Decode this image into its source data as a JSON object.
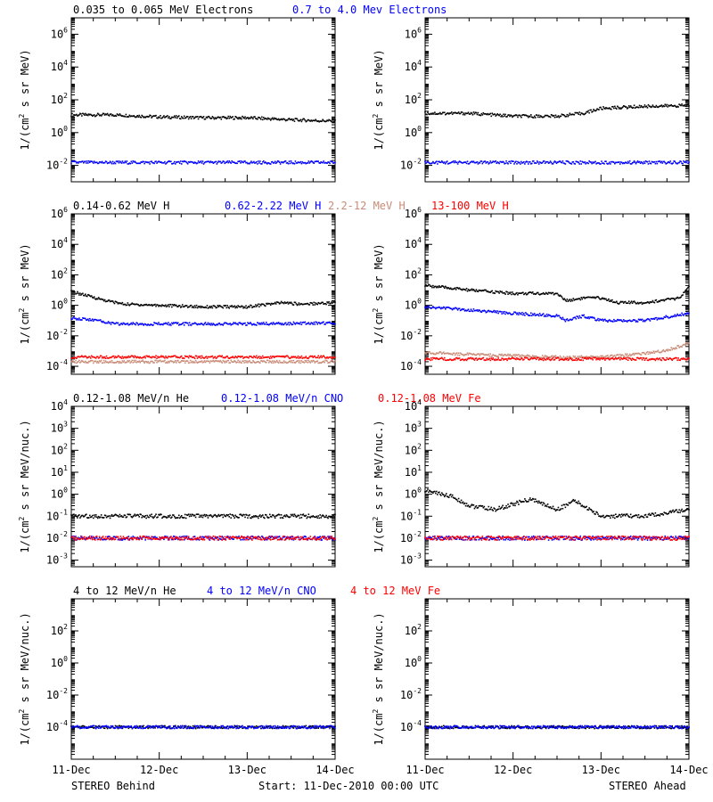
{
  "footer": {
    "left": "STEREO Behind",
    "center": "Start: 11-Dec-2010 00:00 UTC",
    "right": "STEREO Ahead"
  },
  "colors": {
    "black": "#000000",
    "blue": "#0000ff",
    "tan": "#c88c78",
    "red": "#ff0000"
  },
  "chart_data": [
    {
      "type": "scatter",
      "row": 0,
      "spacecraft": "STEREO Behind",
      "ylabel": "1/(cm2 s sr MeV)",
      "ylog": true,
      "ylim": [
        0.001,
        10000000
      ],
      "y_ticks": [
        "10^-2",
        "10^0",
        "10^2",
        "10^4",
        "10^6"
      ],
      "x_ticks": [
        "11-Dec",
        "12-Dec",
        "13-Dec",
        "14-Dec"
      ],
      "xlim": [
        0,
        3
      ],
      "series": [
        {
          "name": "0.035 to 0.065 MeV Electrons",
          "color": "#000000",
          "x": [
            0,
            0.5,
            1,
            1.5,
            2,
            2.5,
            3
          ],
          "y": [
            12,
            12,
            9,
            8,
            8,
            6,
            5
          ]
        },
        {
          "name": "0.7 to 4.0 Mev Electrons",
          "color": "#0000ff",
          "x": [
            0,
            0.5,
            1,
            1.5,
            2,
            2.5,
            3
          ],
          "y": [
            0.015,
            0.015,
            0.015,
            0.015,
            0.015,
            0.015,
            0.015
          ]
        }
      ]
    },
    {
      "type": "scatter",
      "row": 0,
      "spacecraft": "STEREO Ahead",
      "ylabel": "1/(cm2 s sr MeV)",
      "ylog": true,
      "ylim": [
        0.001,
        10000000
      ],
      "y_ticks": [
        "10^-2",
        "10^0",
        "10^2",
        "10^4",
        "10^6"
      ],
      "x_ticks": [
        "11-Dec",
        "12-Dec",
        "13-Dec",
        "14-Dec"
      ],
      "xlim": [
        0,
        3
      ],
      "series": [
        {
          "name": "0.035 to 0.065 MeV Electrons",
          "color": "#000000",
          "x": [
            0,
            0.5,
            1,
            1.5,
            1.8,
            2,
            2.5,
            3
          ],
          "y": [
            15,
            15,
            10,
            10,
            15,
            30,
            40,
            45
          ]
        },
        {
          "name": "0.7 to 4.0 Mev Electrons",
          "color": "#0000ff",
          "x": [
            0,
            0.5,
            1,
            1.5,
            2,
            2.5,
            3
          ],
          "y": [
            0.015,
            0.015,
            0.015,
            0.015,
            0.015,
            0.015,
            0.015
          ]
        }
      ]
    },
    {
      "type": "scatter",
      "row": 1,
      "spacecraft": "STEREO Behind",
      "ylabel": "1/(cm2 s sr MeV)",
      "ylog": true,
      "ylim": [
        3e-05,
        1000000
      ],
      "y_ticks": [
        "10^-4",
        "10^-2",
        "10^0",
        "10^2",
        "10^4",
        "10^6"
      ],
      "x_ticks": [
        "11-Dec",
        "12-Dec",
        "13-Dec",
        "14-Dec"
      ],
      "xlim": [
        0,
        3
      ],
      "series": [
        {
          "name": "0.14-0.62 MeV H",
          "color": "#000000",
          "x": [
            0,
            0.2,
            0.4,
            0.6,
            1,
            1.5,
            2,
            2.4,
            2.6,
            3
          ],
          "y": [
            8,
            4,
            2,
            1.2,
            1,
            0.8,
            0.8,
            1.5,
            1.2,
            1.5
          ]
        },
        {
          "name": "0.62-2.22 MeV H",
          "color": "#0000ff",
          "x": [
            0,
            0.3,
            0.5,
            1,
            2,
            3
          ],
          "y": [
            0.15,
            0.1,
            0.06,
            0.06,
            0.06,
            0.07
          ]
        },
        {
          "name": "2.2-12 MeV H",
          "color": "#c88c78",
          "x": [
            0,
            1,
            2,
            3
          ],
          "y": [
            0.0002,
            0.0002,
            0.0002,
            0.0002
          ]
        },
        {
          "name": "13-100 MeV H",
          "color": "#ff0000",
          "x": [
            0,
            1,
            2,
            3
          ],
          "y": [
            0.0004,
            0.0004,
            0.0004,
            0.0004
          ]
        }
      ]
    },
    {
      "type": "scatter",
      "row": 1,
      "spacecraft": "STEREO Ahead",
      "ylabel": "1/(cm2 s sr MeV)",
      "ylog": true,
      "ylim": [
        3e-05,
        1000000
      ],
      "y_ticks": [
        "10^-4",
        "10^-2",
        "10^0",
        "10^2",
        "10^4",
        "10^6"
      ],
      "x_ticks": [
        "11-Dec",
        "12-Dec",
        "13-Dec",
        "14-Dec"
      ],
      "xlim": [
        0,
        3
      ],
      "series": [
        {
          "name": "0.14-0.62 MeV H",
          "color": "#000000",
          "x": [
            0,
            0.5,
            1,
            1.5,
            1.6,
            1.8,
            2,
            2.2,
            2.5,
            2.9,
            3
          ],
          "y": [
            20,
            10,
            6,
            6,
            2,
            3,
            3,
            1.5,
            1.5,
            3,
            15
          ]
        },
        {
          "name": "0.62-2.22 MeV H",
          "color": "#0000ff",
          "x": [
            0,
            0.5,
            1,
            1.5,
            1.6,
            1.8,
            2,
            2.5,
            3
          ],
          "y": [
            0.8,
            0.5,
            0.3,
            0.2,
            0.1,
            0.2,
            0.1,
            0.1,
            0.3
          ]
        },
        {
          "name": "2.2-12 MeV H",
          "color": "#c88c78",
          "x": [
            0,
            0.5,
            1,
            1.5,
            2,
            2.4,
            2.7,
            3
          ],
          "y": [
            0.0008,
            0.0006,
            0.0005,
            0.0004,
            0.0004,
            0.0006,
            0.001,
            0.003
          ]
        },
        {
          "name": "13-100 MeV H",
          "color": "#ff0000",
          "x": [
            0,
            1,
            2,
            3
          ],
          "y": [
            0.0003,
            0.0003,
            0.0003,
            0.0003
          ]
        }
      ]
    },
    {
      "type": "scatter",
      "row": 2,
      "spacecraft": "STEREO Behind",
      "ylabel": "1/(cm2 s sr MeV/nuc.)",
      "ylog": true,
      "ylim": [
        0.0005,
        10000
      ],
      "y_ticks": [
        "10^-3",
        "10^-2",
        "10^-1",
        "10^0",
        "10^1",
        "10^2",
        "10^3",
        "10^4"
      ],
      "x_ticks": [
        "11-Dec",
        "12-Dec",
        "13-Dec",
        "14-Dec"
      ],
      "xlim": [
        0,
        3
      ],
      "series": [
        {
          "name": "0.12-1.08 MeV/n He",
          "color": "#000000",
          "x": [
            0,
            0.5,
            1,
            1.5,
            2,
            2.5,
            3
          ],
          "y": [
            0.1,
            0.1,
            0.1,
            0.1,
            0.1,
            0.1,
            0.1
          ]
        },
        {
          "name": "0.12-1.08 MeV/n CNO",
          "color": "#0000ff",
          "x": [
            0,
            1,
            2,
            3
          ],
          "y": [
            0.01,
            0.01,
            0.01,
            0.01
          ]
        },
        {
          "name": "0.12-1.08 MeV Fe",
          "color": "#ff0000",
          "x": [
            0,
            1,
            2,
            3
          ],
          "y": [
            0.01,
            0.01,
            0.01,
            0.01
          ]
        }
      ]
    },
    {
      "type": "scatter",
      "row": 2,
      "spacecraft": "STEREO Ahead",
      "ylabel": "1/(cm2 s sr MeV/nuc.)",
      "ylog": true,
      "ylim": [
        0.0005,
        10000
      ],
      "y_ticks": [
        "10^-3",
        "10^-2",
        "10^-1",
        "10^0",
        "10^1",
        "10^2",
        "10^3",
        "10^4"
      ],
      "x_ticks": [
        "11-Dec",
        "12-Dec",
        "13-Dec",
        "14-Dec"
      ],
      "xlim": [
        0,
        3
      ],
      "series": [
        {
          "name": "0.12-1.08 MeV/n He",
          "color": "#000000",
          "x": [
            0,
            0.3,
            0.5,
            0.8,
            1.2,
            1.5,
            1.7,
            2,
            2.5,
            3
          ],
          "y": [
            1.5,
            0.8,
            0.3,
            0.2,
            0.6,
            0.2,
            0.5,
            0.1,
            0.1,
            0.2
          ]
        },
        {
          "name": "0.12-1.08 MeV/n CNO",
          "color": "#0000ff",
          "x": [
            0,
            1,
            2,
            3
          ],
          "y": [
            0.01,
            0.01,
            0.01,
            0.01
          ]
        },
        {
          "name": "0.12-1.08 MeV Fe",
          "color": "#ff0000",
          "x": [
            0,
            1,
            2,
            3
          ],
          "y": [
            0.01,
            0.01,
            0.01,
            0.01
          ]
        }
      ]
    },
    {
      "type": "scatter",
      "row": 3,
      "spacecraft": "STEREO Behind",
      "ylabel": "1/(cm2 s sr MeV/nuc.)",
      "ylog": true,
      "ylim": [
        1e-06,
        10000
      ],
      "y_ticks": [
        "10^-4",
        "10^-2",
        "10^0",
        "10^2"
      ],
      "x_ticks": [
        "11-Dec",
        "12-Dec",
        "13-Dec",
        "14-Dec"
      ],
      "xlim": [
        0,
        3
      ],
      "series": [
        {
          "name": "4 to 12 MeV/n He",
          "color": "#000000",
          "x": [
            0,
            1,
            2,
            3
          ],
          "y": [
            0.0001,
            0.0001,
            0.0001,
            0.0001
          ]
        },
        {
          "name": "4 to 12 MeV/n CNO",
          "color": "#0000ff",
          "x": [
            0,
            1,
            2,
            3
          ],
          "y": [
            0.0001,
            0.0001,
            0.0001,
            0.0001
          ]
        },
        {
          "name": "4 to 12 MeV Fe",
          "color": "#ff0000",
          "x": [],
          "y": []
        }
      ]
    },
    {
      "type": "scatter",
      "row": 3,
      "spacecraft": "STEREO Ahead",
      "ylabel": "1/(cm2 s sr MeV/nuc.)",
      "ylog": true,
      "ylim": [
        1e-06,
        10000
      ],
      "y_ticks": [
        "10^-4",
        "10^-2",
        "10^0",
        "10^2"
      ],
      "x_ticks": [
        "11-Dec",
        "12-Dec",
        "13-Dec",
        "14-Dec"
      ],
      "xlim": [
        0,
        3
      ],
      "series": [
        {
          "name": "4 to 12 MeV/n He",
          "color": "#000000",
          "x": [
            0,
            1,
            2,
            3
          ],
          "y": [
            0.0001,
            0.0001,
            0.0001,
            0.0001
          ]
        },
        {
          "name": "4 to 12 MeV/n CNO",
          "color": "#0000ff",
          "x": [
            0,
            1,
            2,
            3
          ],
          "y": [
            0.0001,
            0.0001,
            0.0001,
            0.0001
          ]
        },
        {
          "name": "4 to 12 MeV Fe",
          "color": "#ff0000",
          "x": [],
          "y": []
        }
      ]
    }
  ]
}
